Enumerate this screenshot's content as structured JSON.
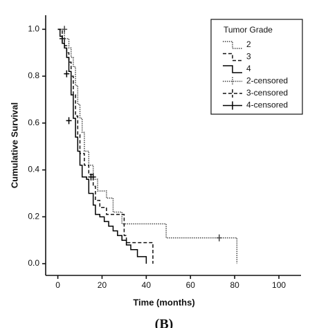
{
  "chart_data": {
    "type": "km",
    "caption": "(B)",
    "x_label": "Time (months)",
    "y_label": "Cumulative Survival",
    "legend_title": "Tumor Grade",
    "xlim": [
      -5.5,
      110
    ],
    "xticks": [
      0,
      20,
      40,
      60,
      80,
      100
    ],
    "ylim": [
      -0.05,
      1.06
    ],
    "yticks": [
      {
        "value": 0,
        "label": "0.0"
      },
      0.2,
      0.4,
      0.6,
      0.8,
      {
        "value": 1,
        "label": "1.0"
      }
    ],
    "series": [
      {
        "name": "2",
        "color": "#444444",
        "dash": "dotted",
        "marker": "step",
        "x": [
          0,
          3,
          5,
          6,
          7,
          8,
          9,
          10,
          11,
          12,
          14,
          16,
          18,
          22,
          25,
          29,
          49,
          81
        ],
        "values": [
          1.0,
          0.96,
          0.92,
          0.88,
          0.84,
          0.76,
          0.68,
          0.62,
          0.56,
          0.48,
          0.42,
          0.36,
          0.31,
          0.28,
          0.22,
          0.17,
          0.11,
          0
        ]
      },
      {
        "name": "3",
        "color": "#111111",
        "dash": "dashed",
        "marker": "step",
        "x": [
          0,
          2,
          3,
          4,
          5,
          6,
          7,
          8,
          9,
          10,
          12,
          14,
          16,
          17,
          19,
          22,
          30,
          31,
          43
        ],
        "values": [
          1.0,
          0.96,
          0.93,
          0.9,
          0.86,
          0.8,
          0.72,
          0.63,
          0.55,
          0.47,
          0.42,
          0.38,
          0.33,
          0.27,
          0.24,
          0.21,
          0.12,
          0.09,
          0
        ]
      },
      {
        "name": "4",
        "color": "#000000",
        "dash": "solid",
        "marker": "step",
        "x": [
          0,
          1,
          2,
          3,
          4,
          5,
          6,
          7,
          8,
          9,
          10,
          11,
          13,
          14,
          16,
          17,
          19,
          21,
          23,
          25,
          27,
          29,
          31,
          33,
          36,
          40
        ],
        "values": [
          1.0,
          0.97,
          0.94,
          0.92,
          0.88,
          0.82,
          0.72,
          0.62,
          0.54,
          0.48,
          0.42,
          0.37,
          0.36,
          0.3,
          0.25,
          0.21,
          0.2,
          0.18,
          0.16,
          0.14,
          0.12,
          0.1,
          0.08,
          0.06,
          0.03,
          0
        ]
      },
      {
        "name": "2-censored",
        "color": "#444444",
        "dash": "dotted",
        "marker": "plus",
        "x": [
          3,
          73
        ],
        "values": [
          1.0,
          0.11
        ]
      },
      {
        "name": "3-censored",
        "color": "#111111",
        "dash": "dashed",
        "marker": "plus",
        "x": [
          2,
          16
        ],
        "values": [
          0.96,
          0.37
        ]
      },
      {
        "name": "4-censored",
        "color": "#000000",
        "dash": "solid",
        "marker": "plus",
        "x": [
          4,
          5,
          15
        ],
        "values": [
          0.81,
          0.61,
          0.37
        ]
      }
    ]
  }
}
